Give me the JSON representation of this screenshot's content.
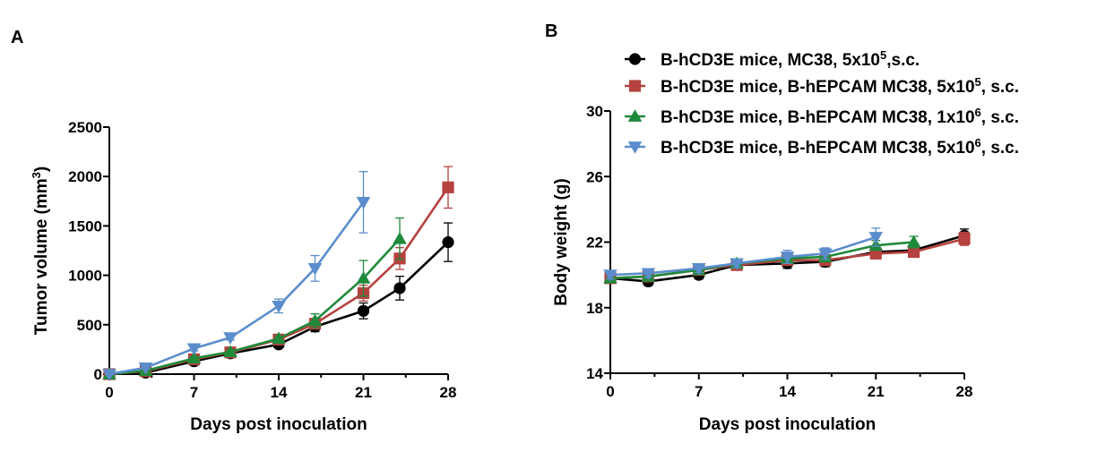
{
  "panels": [
    {
      "label": "A"
    },
    {
      "label": "B"
    }
  ],
  "legend": [
    {
      "pre": "B-hCD3E mice, MC38, 5x10",
      "sup": "5",
      "post": ",s.c."
    },
    {
      "pre": "B-hCD3E mice, B-hEPCAM MC38, 5x10",
      "sup": "5",
      "post": ", s.c."
    },
    {
      "pre": "B-hCD3E mice, B-hEPCAM MC38, 1x10",
      "sup": "6",
      "post": ", s.c."
    },
    {
      "pre": "B-hCD3E mice, B-hEPCAM MC38, 5x10",
      "sup": "6",
      "post": ", s.c."
    }
  ],
  "series_styles": [
    {
      "color": "#000000",
      "marker": "circle"
    },
    {
      "color": "#b5423e",
      "marker": "square"
    },
    {
      "color": "#1f8a3a",
      "marker": "triangle-up"
    },
    {
      "color": "#5b8dcc",
      "marker": "triangle-down"
    }
  ],
  "chart_data": [
    {
      "type": "line",
      "panel": "A",
      "title": "",
      "xlabel": "Days post inoculation",
      "ylabel": {
        "pre": "Tumor volume (mm",
        "sup": "3",
        "post": ")"
      },
      "xlim": [
        0,
        28
      ],
      "ylim": [
        0,
        2500
      ],
      "xticks": [
        0,
        7,
        14,
        21,
        28
      ],
      "yticks": [
        0,
        500,
        1000,
        1500,
        2000,
        2500
      ],
      "grid": false,
      "series": [
        {
          "x": [
            0,
            3,
            7,
            10,
            14,
            17,
            21,
            24,
            28
          ],
          "y": [
            0,
            15,
            130,
            210,
            300,
            480,
            640,
            870,
            1335
          ],
          "err": [
            5,
            8,
            15,
            20,
            25,
            50,
            80,
            120,
            195
          ]
        },
        {
          "x": [
            0,
            3,
            7,
            10,
            14,
            17,
            21,
            24,
            28
          ],
          "y": [
            0,
            30,
            150,
            220,
            350,
            510,
            820,
            1170,
            1890
          ],
          "err": [
            5,
            8,
            15,
            20,
            25,
            45,
            80,
            110,
            210
          ]
        },
        {
          "x": [
            0,
            3,
            7,
            10,
            14,
            17,
            21,
            24
          ],
          "y": [
            0,
            35,
            160,
            225,
            360,
            540,
            970,
            1370
          ],
          "err": [
            5,
            8,
            15,
            20,
            25,
            70,
            180,
            210
          ]
        },
        {
          "x": [
            0,
            3,
            7,
            10,
            14,
            17,
            21
          ],
          "y": [
            0,
            65,
            260,
            370,
            690,
            1070,
            1740
          ],
          "err": [
            5,
            10,
            25,
            25,
            70,
            130,
            310
          ]
        }
      ]
    },
    {
      "type": "line",
      "panel": "B",
      "title": "",
      "xlabel": "Days post inoculation",
      "ylabel": "Body weight (g)",
      "xlim": [
        0,
        28
      ],
      "ylim": [
        14,
        30
      ],
      "xticks": [
        0,
        7,
        14,
        21,
        28
      ],
      "yticks": [
        14,
        18,
        22,
        26,
        30
      ],
      "grid": false,
      "series": [
        {
          "x": [
            0,
            3,
            7,
            10,
            14,
            17,
            21,
            24,
            28
          ],
          "y": [
            19.8,
            19.6,
            20.0,
            20.6,
            20.7,
            20.8,
            21.4,
            21.5,
            22.4
          ],
          "err": [
            0.25,
            0.25,
            0.25,
            0.25,
            0.3,
            0.3,
            0.3,
            0.3,
            0.4
          ]
        },
        {
          "x": [
            0,
            3,
            7,
            10,
            14,
            17,
            21,
            24,
            28
          ],
          "y": [
            19.8,
            19.9,
            20.3,
            20.6,
            20.9,
            20.9,
            21.3,
            21.4,
            22.2
          ],
          "err": [
            0.25,
            0.25,
            0.25,
            0.25,
            0.3,
            0.3,
            0.3,
            0.3,
            0.4
          ]
        },
        {
          "x": [
            0,
            3,
            7,
            10,
            14,
            17,
            21,
            24
          ],
          "y": [
            19.8,
            19.9,
            20.3,
            20.7,
            21.0,
            21.1,
            21.8,
            22.0
          ],
          "err": [
            0.25,
            0.25,
            0.25,
            0.25,
            0.3,
            0.3,
            0.3,
            0.35
          ]
        },
        {
          "x": [
            0,
            3,
            7,
            10,
            14,
            17,
            21
          ],
          "y": [
            20.0,
            20.1,
            20.4,
            20.7,
            21.1,
            21.3,
            22.3
          ],
          "err": [
            0.25,
            0.25,
            0.25,
            0.25,
            0.4,
            0.35,
            0.55
          ]
        }
      ]
    }
  ]
}
